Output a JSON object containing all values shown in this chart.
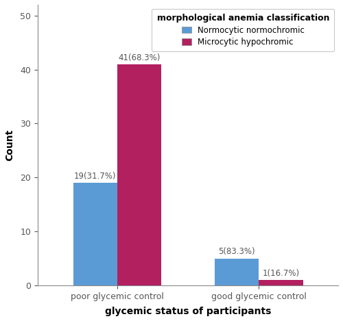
{
  "groups": [
    "poor glycemic control",
    "good glycemic control"
  ],
  "series": [
    {
      "label": "Normocytic normochromic",
      "color": "#5B9BD5",
      "values": [
        19,
        5
      ],
      "annotations": [
        "19(31.7%)",
        "5(83.3%)"
      ]
    },
    {
      "label": "Microcytic hypochromic",
      "color": "#B22060",
      "values": [
        41,
        1
      ],
      "annotations": [
        "41(68.3%)",
        "1(16.7%)"
      ]
    }
  ],
  "legend_title": "morphological anemia classification",
  "xlabel": "glycemic status of participants",
  "ylabel": "Count",
  "ylim": [
    0,
    52
  ],
  "yticks": [
    0,
    10,
    20,
    30,
    40,
    50
  ],
  "bar_width": 0.25,
  "group_centers": [
    0.3,
    1.1
  ],
  "background_color": "#FFFFFF",
  "annotation_fontsize": 8.5,
  "axis_label_fontsize": 10,
  "tick_fontsize": 9,
  "legend_title_fontsize": 9,
  "legend_fontsize": 8.5
}
